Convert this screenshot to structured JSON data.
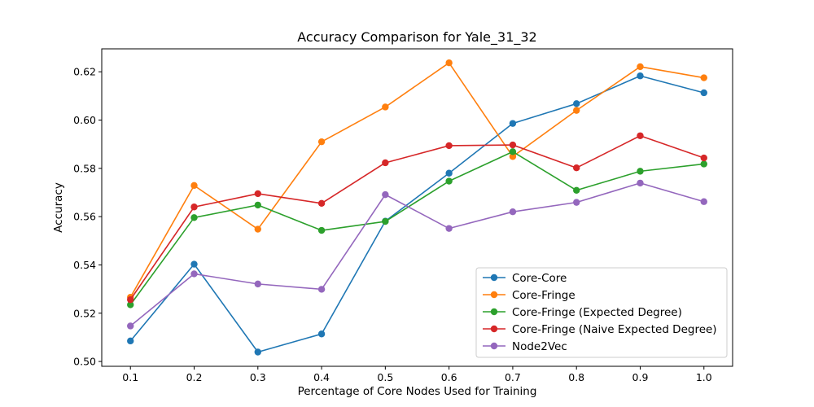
{
  "chart_data": {
    "type": "line",
    "title": "Accuracy Comparison for Yale_31_32",
    "xlabel": "Percentage of Core Nodes Used for Training",
    "ylabel": "Accuracy",
    "x": [
      0.1,
      0.2,
      0.3,
      0.4,
      0.5,
      0.6,
      0.7,
      0.8,
      0.9,
      1.0
    ],
    "x_ticks": [
      "0.1",
      "0.2",
      "0.3",
      "0.4",
      "0.5",
      "0.6",
      "0.7",
      "0.8",
      "0.9",
      "1.0"
    ],
    "y_ticks": [
      "0.50",
      "0.52",
      "0.54",
      "0.56",
      "0.58",
      "0.60",
      "0.62"
    ],
    "xlim": [
      0.055,
      1.045
    ],
    "ylim": [
      0.498,
      0.6295
    ],
    "grid": false,
    "legend_position": "lower-right",
    "series": [
      {
        "name": "Core-Core",
        "color": "#1f77b4",
        "values": [
          0.5085,
          0.5403,
          0.5039,
          0.5114,
          0.5581,
          0.578,
          0.5986,
          0.6068,
          0.6183,
          0.6113
        ]
      },
      {
        "name": "Core-Fringe",
        "color": "#ff7f0e",
        "values": [
          0.5266,
          0.5729,
          0.5548,
          0.591,
          0.6054,
          0.6237,
          0.5849,
          0.604,
          0.6221,
          0.6175
        ]
      },
      {
        "name": "Core-Fringe (Expected Degree)",
        "color": "#2ca02c",
        "values": [
          0.5235,
          0.5596,
          0.5648,
          0.5543,
          0.558,
          0.5747,
          0.5869,
          0.5709,
          0.5788,
          0.5818
        ]
      },
      {
        "name": "Core-Fringe (Naive Expected Degree)",
        "color": "#d62728",
        "values": [
          0.5256,
          0.564,
          0.5695,
          0.5655,
          0.5823,
          0.5894,
          0.5897,
          0.5802,
          0.5935,
          0.5843
        ]
      },
      {
        "name": "Node2Vec",
        "color": "#9467bd",
        "values": [
          0.5147,
          0.5363,
          0.5321,
          0.5299,
          0.5691,
          0.5551,
          0.562,
          0.5659,
          0.5739,
          0.5662
        ]
      }
    ]
  }
}
